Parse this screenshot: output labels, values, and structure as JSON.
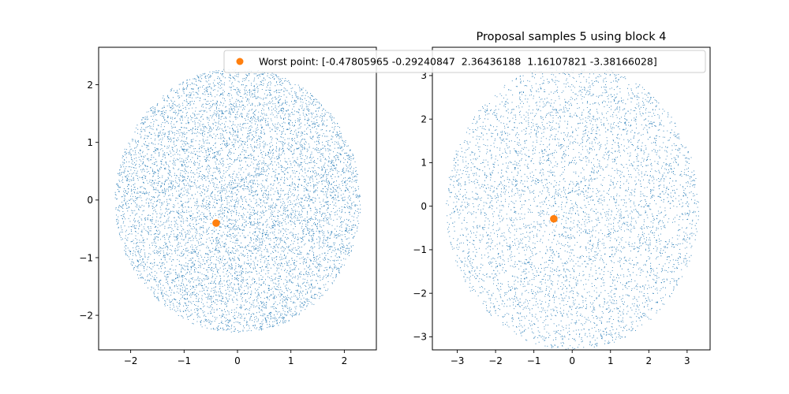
{
  "chart_data": [
    {
      "type": "scatter",
      "title": "",
      "xlabel": "",
      "ylabel": "",
      "xlim": [
        -2.6,
        2.6
      ],
      "ylim": [
        -2.6,
        2.65
      ],
      "xticks": [
        -2,
        -1,
        0,
        1,
        2
      ],
      "yticks": [
        -2,
        -1,
        0,
        1,
        2
      ],
      "xtick_labels": [
        "−2",
        "−1",
        "0",
        "1",
        "2"
      ],
      "ytick_labels": [
        "−2",
        "−1",
        "0",
        "1",
        "2"
      ],
      "grid": false,
      "legend": "top-right",
      "samples": {
        "count": 9000,
        "radius": 2.3,
        "distribution": "uniform-disk",
        "color": "#1f77b4"
      },
      "worst_point": {
        "x": -0.4,
        "y": -0.4,
        "color": "#ff7f0e"
      }
    },
    {
      "type": "scatter",
      "title": "Proposal samples 5 using block 4",
      "xlabel": "",
      "ylabel": "",
      "xlim": [
        -3.65,
        3.6
      ],
      "ylim": [
        -3.3,
        3.65
      ],
      "xticks": [
        -3,
        -2,
        -1,
        0,
        1,
        2,
        3
      ],
      "yticks": [
        -3,
        -2,
        -1,
        0,
        1,
        2,
        3
      ],
      "xtick_labels": [
        "−3",
        "−2",
        "−1",
        "0",
        "1",
        "2",
        "3"
      ],
      "ytick_labels": [
        "−3",
        "−2",
        "−1",
        "0",
        "1",
        "2",
        "3"
      ],
      "grid": false,
      "samples": {
        "count": 9000,
        "radius": 3.3,
        "distribution": "uniform-disk",
        "color": "#1f77b4"
      },
      "worst_point": {
        "x": -0.48,
        "y": -0.29,
        "color": "#ff7f0e"
      }
    }
  ],
  "legend": {
    "label": "Worst point: [-0.47805965 -0.29240847  2.36436188  1.16107821 -3.38166028]",
    "marker_color": "#ff7f0e"
  }
}
